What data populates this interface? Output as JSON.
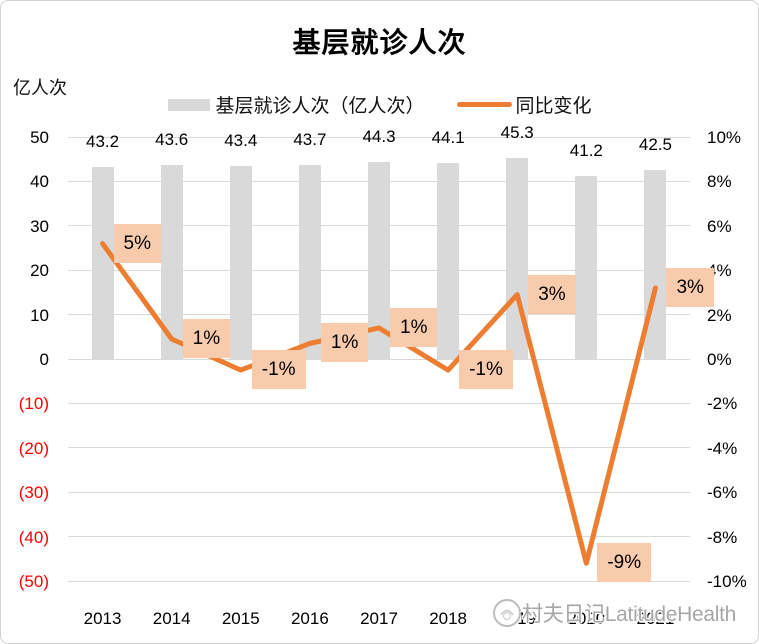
{
  "title": "基层就诊人次",
  "unit_label": "亿人次",
  "legend": {
    "bar_label": "基层就诊人次（亿人次）",
    "line_label": "同比变化"
  },
  "colors": {
    "bar": "#d9d9d9",
    "line": "#ed7d31",
    "data_label_bg": "#f8cbad",
    "gridline": "#d9d9d9",
    "negative_tick": "#ff0000",
    "text": "#000000",
    "watermark": "#a6a6a6"
  },
  "chart_data": {
    "type": "combo-bar-line",
    "title": "基层就诊人次",
    "categories": [
      "2013",
      "2014",
      "2015",
      "2016",
      "2017",
      "2018",
      "2019",
      "2020",
      "2021"
    ],
    "series": [
      {
        "name": "基层就诊人次（亿人次）",
        "type": "bar",
        "axis": "left",
        "values": [
          43.2,
          43.6,
          43.4,
          43.7,
          44.3,
          44.1,
          45.3,
          41.2,
          42.5
        ],
        "data_labels": [
          "43.2",
          "43.6",
          "43.4",
          "43.7",
          "44.3",
          "44.1",
          "45.3",
          "41.2",
          "42.5"
        ],
        "color": "#d9d9d9"
      },
      {
        "name": "同比变化",
        "type": "line",
        "axis": "right",
        "values_percent": [
          5.2,
          0.9,
          -0.5,
          0.7,
          1.4,
          -0.5,
          2.9,
          -9.2,
          3.2
        ],
        "data_labels": [
          "5%",
          "1%",
          "-1%",
          "1%",
          "1%",
          "-1%",
          "3%",
          "-9%",
          "3%"
        ],
        "color": "#ed7d31",
        "label_bg": "#f8cbad"
      }
    ],
    "left_axis": {
      "title": "亿人次",
      "min": -50,
      "max": 50,
      "tick_values": [
        50,
        40,
        30,
        20,
        10,
        0,
        -10,
        -20,
        -30,
        -40,
        -50
      ],
      "tick_labels": [
        "50",
        "40",
        "30",
        "20",
        "10",
        "0",
        "(10)",
        "(20)",
        "(30)",
        "(40)",
        "(50)"
      ],
      "negative_style": "red-parentheses"
    },
    "right_axis": {
      "min": -10,
      "max": 10,
      "tick_values": [
        10,
        8,
        6,
        4,
        2,
        0,
        -2,
        -4,
        -6,
        -8,
        -10
      ],
      "tick_labels": [
        "10%",
        "8%",
        "6%",
        "4%",
        "2%",
        "0%",
        "-2%",
        "-4%",
        "-6%",
        "-8%",
        "-10%"
      ]
    },
    "grid": true,
    "legend_position": "top"
  },
  "watermark": {
    "text": "村夫日记LatitudeHealth"
  }
}
